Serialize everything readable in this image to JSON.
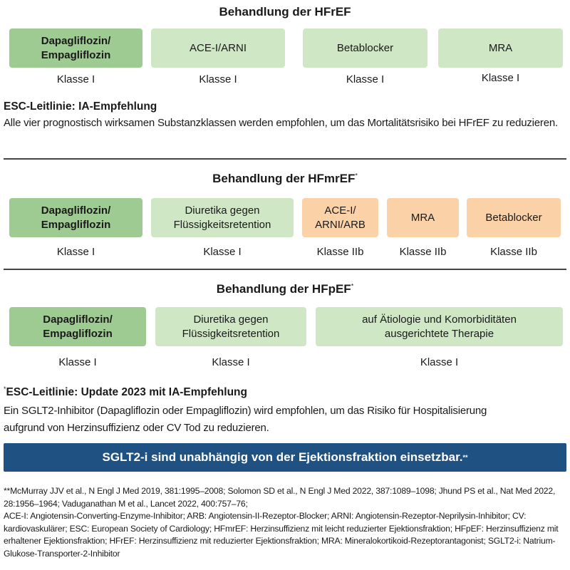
{
  "hfref": {
    "title": "Behandlung der HFrEF",
    "boxes": [
      {
        "label": "Dapagliflozin/ Empagliflozin",
        "klasse": "Klasse I"
      },
      {
        "label": "ACE-I/ARNI",
        "klasse": "Klasse I"
      },
      {
        "label": "Betablocker",
        "klasse": "Klasse I"
      },
      {
        "label": "MRA",
        "klasse": "Klasse I"
      }
    ],
    "note_title": "ESC-Leitlinie: IA-Empfehlung",
    "note_text": "Alle vier prognostisch wirksamen Substanzklassen werden empfohlen, um das Mortalitätsrisiko bei HFrEF zu reduzieren."
  },
  "hfmref": {
    "title": "Behandlung der HFmrEF",
    "title_mark": "*",
    "boxes": [
      {
        "label": "Dapagliflozin/ Empagliflozin",
        "klasse": "Klasse I"
      },
      {
        "label": "Diuretika gegen Flüssigkeitsretention",
        "klasse": "Klasse I"
      },
      {
        "label": "ACE-I/ ARNI/ARB",
        "klasse": "Klasse IIb"
      },
      {
        "label": "MRA",
        "klasse": "Klasse IIb"
      },
      {
        "label": "Betablocker",
        "klasse": "Klasse IIb"
      }
    ]
  },
  "hfpef": {
    "title": "Behandlung der HFpEF",
    "title_mark": "*",
    "boxes": [
      {
        "label": "Dapagliflozin/ Empagliflozin",
        "klasse": "Klasse I"
      },
      {
        "label": "Diuretika gegen Flüssigkeitsretention",
        "klasse": "Klasse I"
      },
      {
        "label": "auf Ätiologie und Komorbiditäten ausgerichtete Therapie",
        "klasse": "Klasse I"
      }
    ]
  },
  "update": {
    "mark": "*",
    "title": "ESC-Leitlinie: Update 2023 mit IA-Empfehlung",
    "line1": "Ein SGLT2-Inhibitor (Dapagliflozin oder Empagliflozin) wird empfohlen, um das Risiko für Hospitalisierung",
    "line2": "aufgrund von Herzinsuffizienz oder CV Tod zu reduzieren."
  },
  "banner": {
    "text": "SGLT2-i sind unabhängig von der Ejektionsfraktion einsetzbar.",
    "mark": "**"
  },
  "references": "**McMurray JJV et al., N Engl J Med 2019, 381:1995–2008; Solomon SD et al., N Engl J Med 2022, 387:1089–1098; Jhund PS et al., Nat Med 2022, 28:1956–1964; Vaduganathan M et al., Lancet 2022, 400:757–76;",
  "abbreviations": "ACE-I: Angiotensin-Converting-Enzyme-Inhibitor; ARB: Angiotensin-II-Rezeptor-Blocker; ARNI: Angiotensin-Rezeptor-Neprilysin-Inhibitor; CV: kardiovaskulärer; ESC: European Society of Cardiology; HFmrEF: Herzinsuffizienz mit leicht reduzierter Ejektionsfraktion; HFpEF: Herzinsuffizienz mit erhaltener Ejektionsfraktion; HFrEF: Herzinsuffizienz mit reduzierter Ejektionsfraktion; MRA: Mineralokortikoid-Rezeptorantagonist; SGLT2-i: Natrium-Glukose-Transporter-2-Inhibitor",
  "colors": {
    "class_I_sglt2": "#9ecb92",
    "class_I": "#cfe7c5",
    "class_IIb": "#fbd2a8",
    "banner": "#1f5182"
  }
}
